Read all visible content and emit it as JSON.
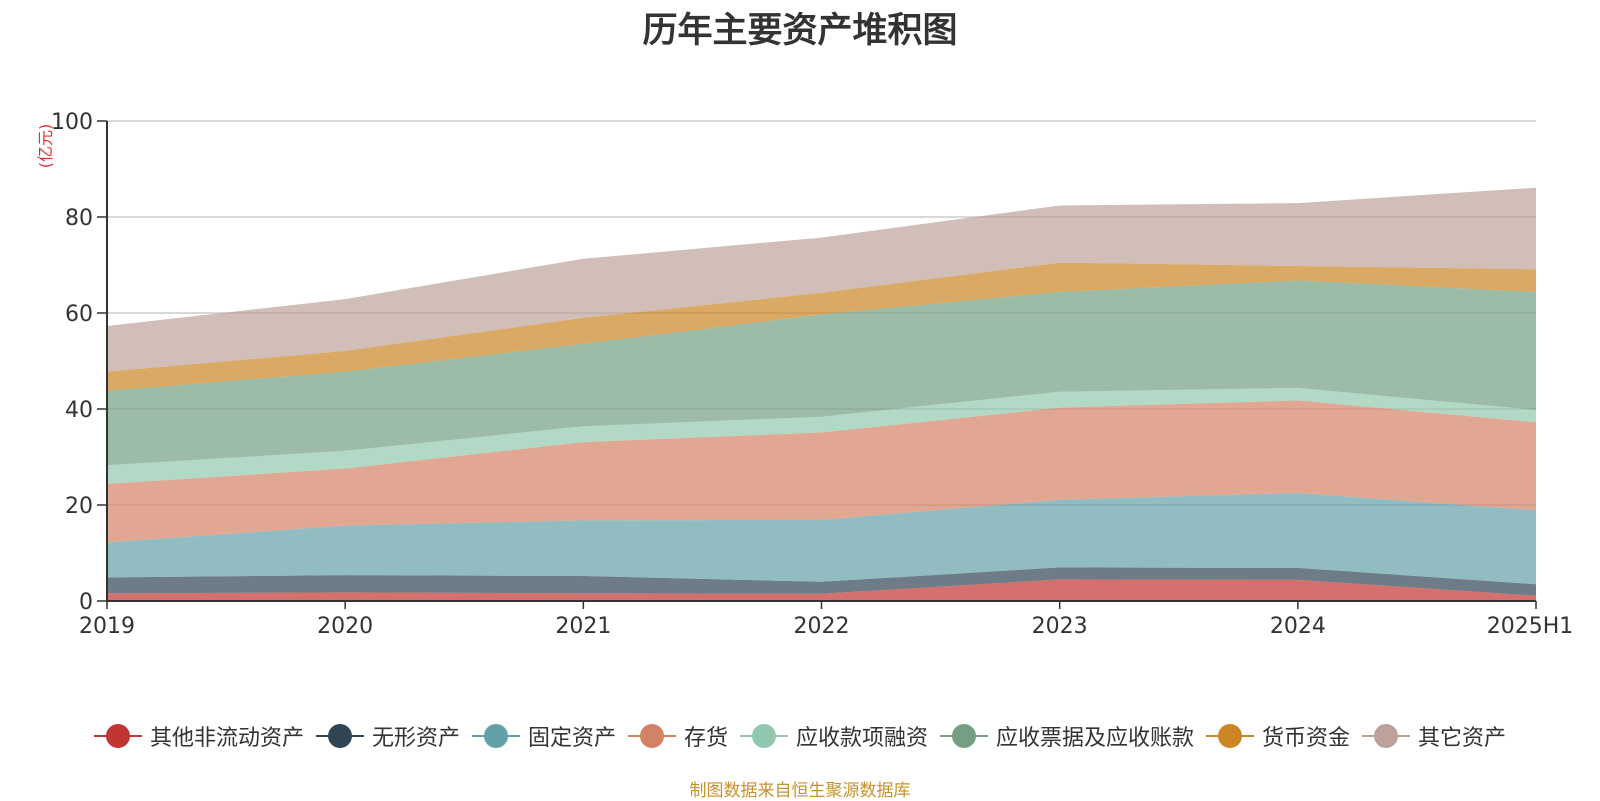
{
  "title": "历年主要资产堆积图",
  "source_note": "制图数据来自恒生聚源数据库",
  "chart_data": {
    "type": "area",
    "stacked": true,
    "title": "历年主要资产堆积图",
    "ylabel": "(亿元)",
    "xlabel": "",
    "ylim": [
      0,
      100
    ],
    "yticks": [
      "0",
      "20",
      "40",
      "60",
      "80",
      "100"
    ],
    "grid": true,
    "legend_position": "bottom",
    "categories": [
      "2019",
      "2020",
      "2021",
      "2022",
      "2023",
      "2024",
      "2025H1"
    ],
    "series": [
      {
        "name": "其他非流动资产",
        "color": "#c23531",
        "values": [
          1.6,
          1.8,
          1.6,
          1.5,
          4.5,
          4.4,
          1.1
        ]
      },
      {
        "name": "无形资产",
        "color": "#2f4554",
        "values": [
          3.3,
          3.6,
          3.6,
          2.5,
          2.5,
          2.5,
          2.4
        ]
      },
      {
        "name": "固定资产",
        "color": "#61a0a8",
        "values": [
          7.3,
          10.3,
          11.6,
          12.9,
          14.1,
          15.6,
          15.4
        ]
      },
      {
        "name": "存货",
        "color": "#d48265",
        "values": [
          12.2,
          11.9,
          16.3,
          18.2,
          19.2,
          19.3,
          18.3
        ]
      },
      {
        "name": "应收款项融资",
        "color": "#91c7ae",
        "values": [
          3.9,
          3.7,
          3.3,
          3.3,
          3.3,
          2.6,
          2.6
        ]
      },
      {
        "name": "应收票据及应收账款",
        "color": "#749f83",
        "values": [
          15.5,
          16.5,
          17.2,
          21.3,
          20.8,
          22.4,
          24.6
        ]
      },
      {
        "name": "货币资金",
        "color": "#ca8622",
        "values": [
          4.0,
          4.3,
          5.4,
          4.5,
          6.1,
          3.0,
          4.7
        ]
      },
      {
        "name": "其它资产",
        "color": "#bda29a",
        "values": [
          9.5,
          10.8,
          12.3,
          11.5,
          11.9,
          13.1,
          17.0
        ]
      }
    ]
  }
}
